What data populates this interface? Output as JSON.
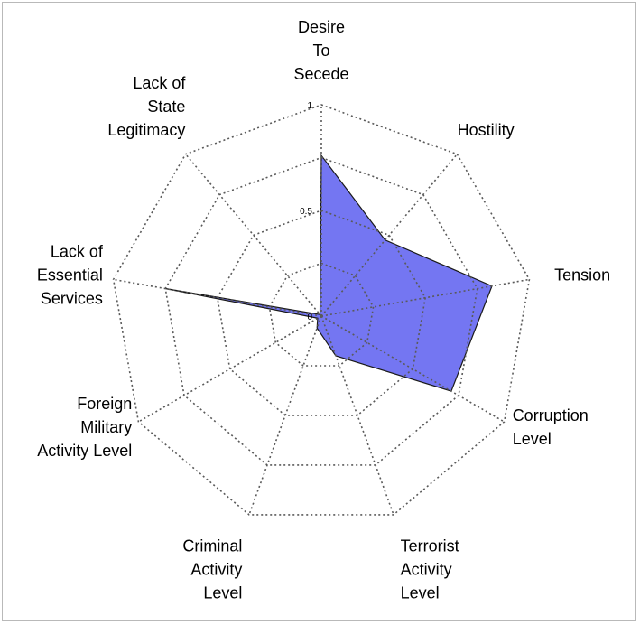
{
  "chart_data": {
    "type": "radar",
    "axes": [
      {
        "lines": [
          "Desire",
          "To",
          "Secede"
        ]
      },
      {
        "lines": [
          "Hostility"
        ]
      },
      {
        "lines": [
          "Tension"
        ]
      },
      {
        "lines": [
          "Corruption",
          "Level"
        ]
      },
      {
        "lines": [
          "Terrorist",
          "Activity",
          "Level"
        ]
      },
      {
        "lines": [
          "Criminal",
          "Activity",
          "Level"
        ]
      },
      {
        "lines": [
          "Foreign",
          "Military",
          "Activity Level"
        ]
      },
      {
        "lines": [
          "Lack of",
          "Essential",
          "Services"
        ]
      },
      {
        "lines": [
          "Lack of",
          "State",
          "Legitimacy"
        ]
      }
    ],
    "values": [
      0.76,
      0.47,
      0.82,
      0.71,
      0.2,
      0.06,
      0.02,
      0.75,
      0.01
    ],
    "rlim": [
      0,
      1
    ],
    "ticks": [
      {
        "value": 0,
        "label": "0"
      },
      {
        "value": 0.5,
        "label": "0.5"
      },
      {
        "value": 1,
        "label": "1"
      }
    ],
    "grid": true,
    "fill_color": "#7476f2",
    "grid_color": "#5a5a5a"
  }
}
